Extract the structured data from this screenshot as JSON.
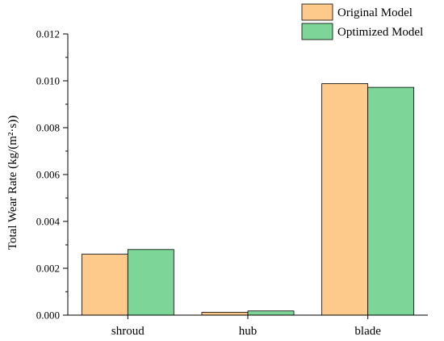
{
  "chart_data": {
    "type": "bar",
    "title": "",
    "xlabel": "",
    "ylabel": "Total Wear Rate (kg/(m²·s))",
    "ylim": [
      0,
      0.012
    ],
    "yticks": [
      "0.000",
      "0.002",
      "0.004",
      "0.006",
      "0.008",
      "0.010",
      "0.012"
    ],
    "categories": [
      "shroud",
      "hub",
      "blade"
    ],
    "series": [
      {
        "name": "Original Model",
        "color": "#fdca8c",
        "values": [
          0.0026,
          0.00012,
          0.00988
        ]
      },
      {
        "name": "Optimized Model",
        "color": "#7dd697",
        "values": [
          0.0028,
          0.00018,
          0.00972
        ]
      }
    ],
    "grid": false,
    "legend": "top-right"
  }
}
